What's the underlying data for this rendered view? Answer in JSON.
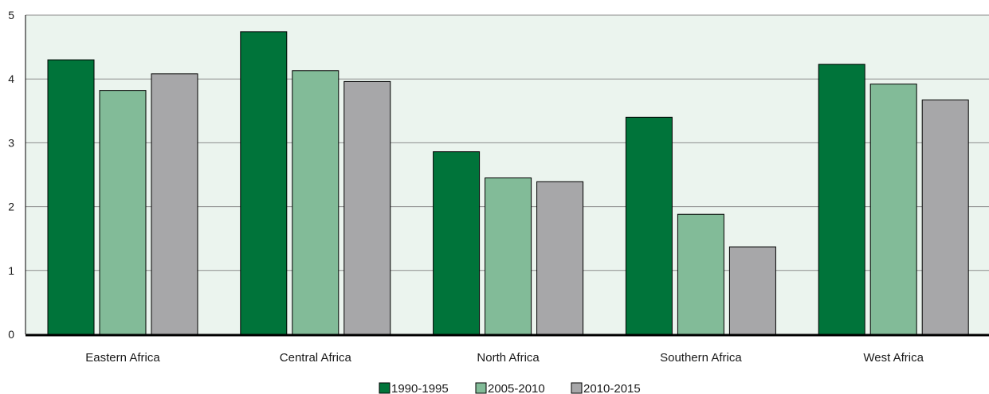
{
  "chart_data": {
    "type": "bar",
    "title": "",
    "xlabel": "",
    "ylabel": "",
    "ylim": [
      0,
      5
    ],
    "yticks": [
      0,
      1,
      2,
      3,
      4,
      5
    ],
    "grid": true,
    "legend_position": "bottom-center",
    "categories": [
      "Eastern Africa",
      "Central Africa",
      "North Africa",
      "Southern Africa",
      "West Africa"
    ],
    "series": [
      {
        "name": "1990-1995",
        "color": "#00743a",
        "values": [
          4.3,
          4.74,
          2.86,
          3.4,
          4.23
        ]
      },
      {
        "name": "2005-2010",
        "color": "#82bb98",
        "values": [
          3.82,
          4.13,
          2.45,
          1.88,
          3.92
        ]
      },
      {
        "name": "2010-2015",
        "color": "#a7a7a9",
        "values": [
          4.08,
          3.96,
          2.39,
          1.37,
          3.67
        ]
      }
    ],
    "colors": {
      "plot_background": "#ebf4ee",
      "gridline": "#8c8c8c",
      "axis": "#000000",
      "bar_outline": "#000000"
    }
  }
}
